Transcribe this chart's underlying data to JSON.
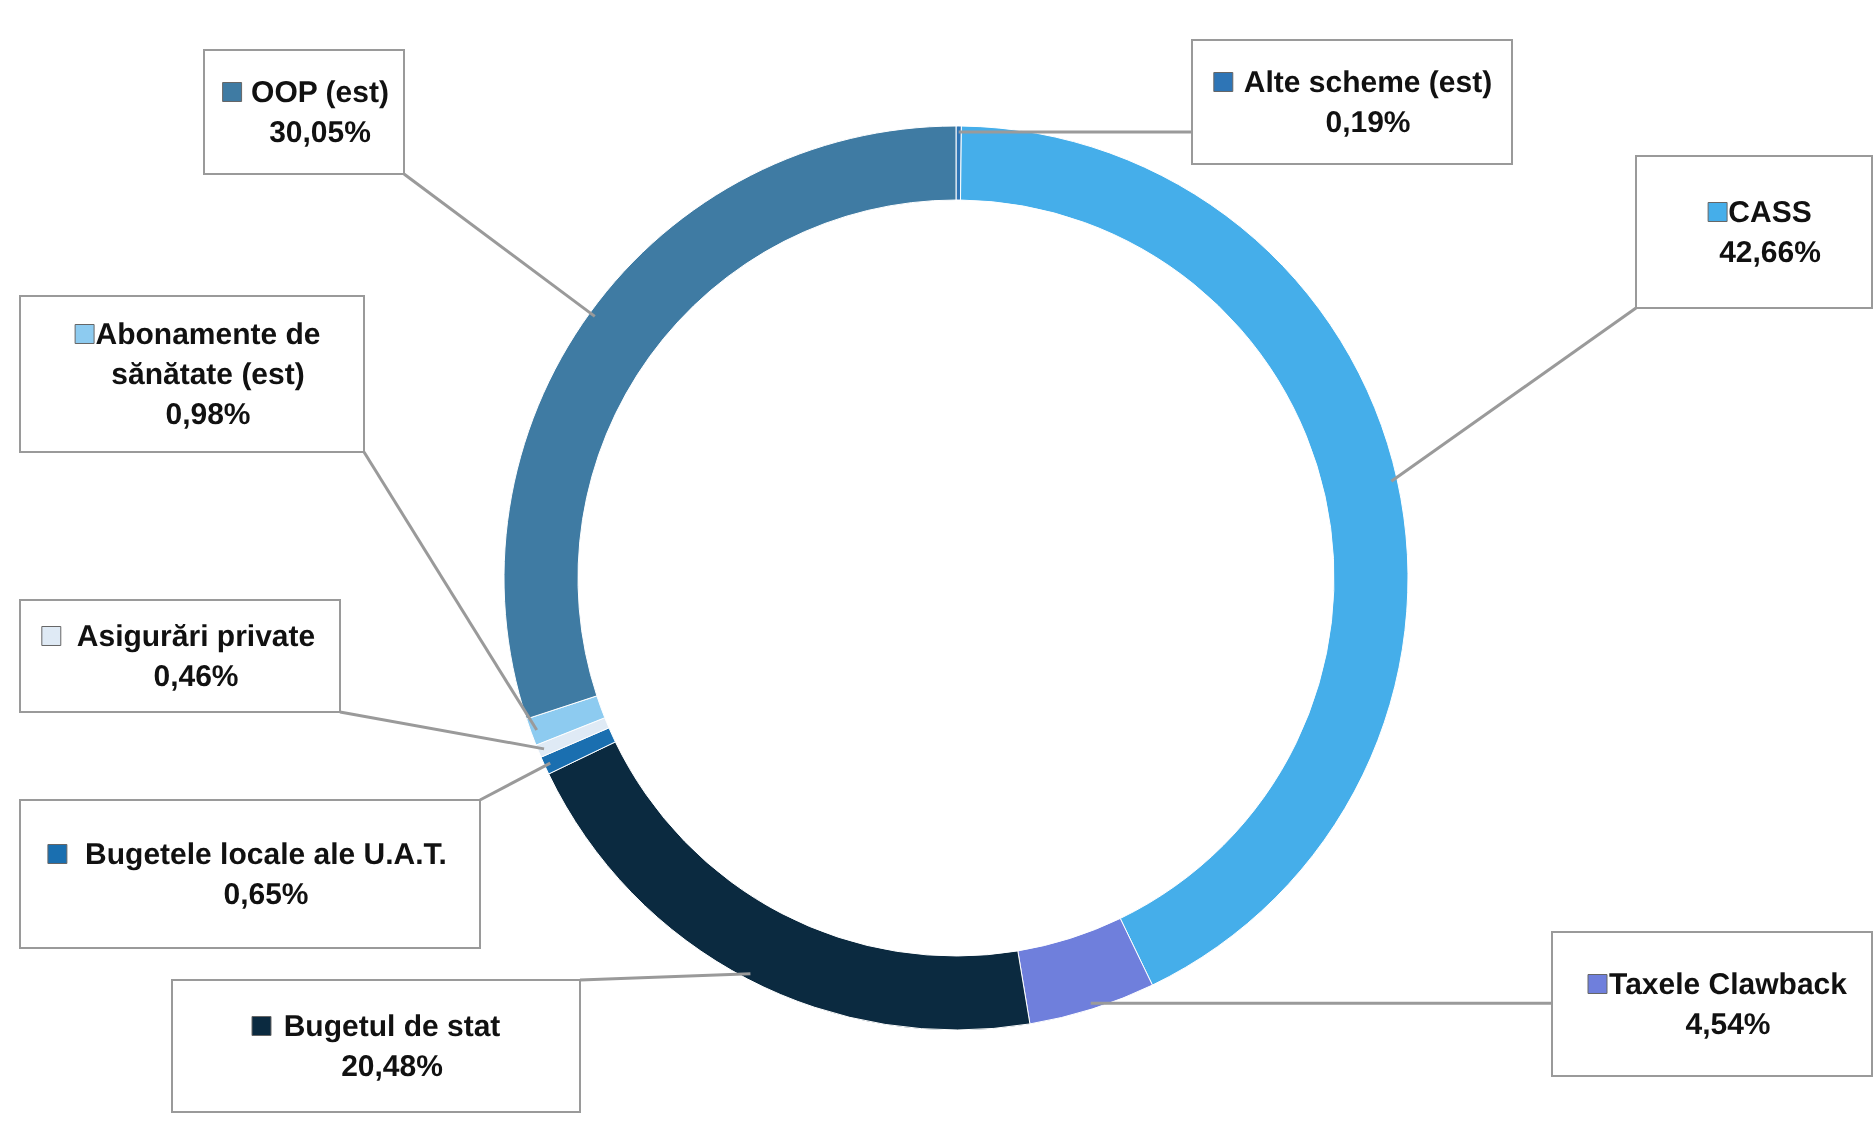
{
  "chart_data": {
    "type": "donut",
    "categories": [
      "Alte scheme (est)",
      "CASS",
      "Taxele Clawback",
      "Bugetul de stat",
      "Bugetele locale ale U.A.T.",
      "Asigurări private",
      "Abonamente de sănătate (est)",
      "OOP (est)"
    ],
    "values": [
      0.19,
      42.66,
      4.54,
      20.48,
      0.65,
      0.46,
      0.98,
      30.05
    ],
    "value_labels": [
      "0,19%",
      "42,66%",
      "4,54%",
      "20,48%",
      "0,65%",
      "0,46%",
      "0,98%",
      "30,05%"
    ],
    "colors": [
      "#2e75b6",
      "#45aeea",
      "#6f7fdc",
      "#0b2a40",
      "#1a6fb0",
      "#dfeaf5",
      "#8dcbf0",
      "#3f7ba3"
    ],
    "legend": "left"
  }
}
